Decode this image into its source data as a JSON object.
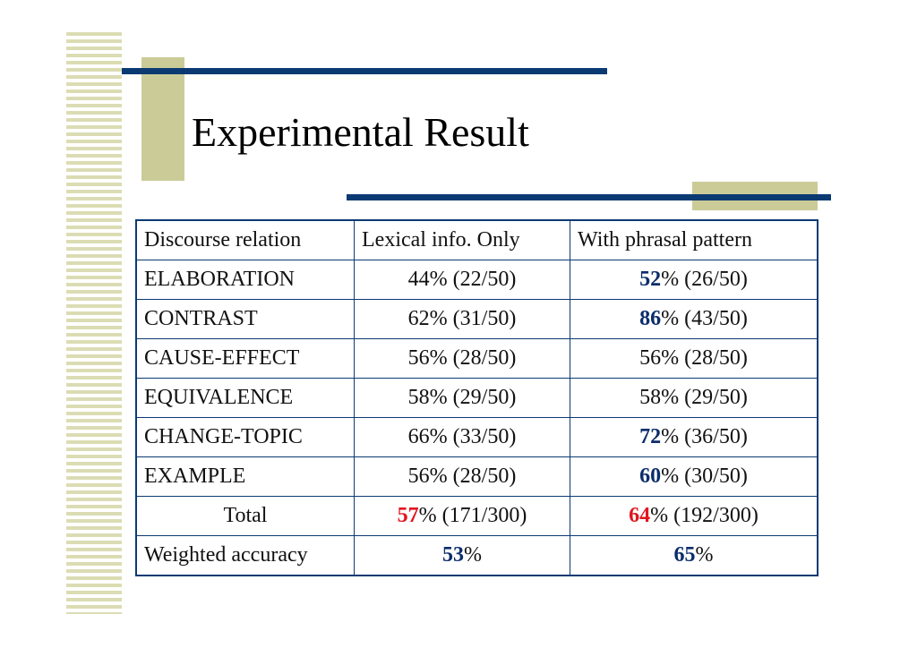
{
  "slide": {
    "title": "Experimental Result"
  },
  "table": {
    "headers": [
      "Discourse relation",
      "Lexical info. Only",
      "With phrasal pattern"
    ],
    "rows": [
      {
        "label": "ELABORATION",
        "lexical": {
          "bold": "",
          "rest": "44% (22/50)"
        },
        "phrasal": {
          "bold": "52",
          "rest": "% (26/50)"
        }
      },
      {
        "label": "CONTRAST",
        "lexical": {
          "bold": "",
          "rest": "62% (31/50)"
        },
        "phrasal": {
          "bold": "86",
          "rest": "% (43/50)"
        }
      },
      {
        "label": "CAUSE-EFFECT",
        "lexical": {
          "bold": "",
          "rest": "56% (28/50)"
        },
        "phrasal": {
          "bold": "",
          "rest": "56% (28/50)"
        }
      },
      {
        "label": "EQUIVALENCE",
        "lexical": {
          "bold": "",
          "rest": "58% (29/50)"
        },
        "phrasal": {
          "bold": "",
          "rest": "58% (29/50)"
        }
      },
      {
        "label": "CHANGE-TOPIC",
        "lexical": {
          "bold": "",
          "rest": "66% (33/50)"
        },
        "phrasal": {
          "bold": "72",
          "rest": "% (36/50)"
        }
      },
      {
        "label": "EXAMPLE",
        "lexical": {
          "bold": "",
          "rest": "56% (28/50)"
        },
        "phrasal": {
          "bold": "60",
          "rest": "% (30/50)"
        }
      }
    ],
    "total": {
      "label": "Total",
      "lexical": {
        "bold": "57",
        "rest": "% (171/300)"
      },
      "phrasal": {
        "bold": "64",
        "rest": "% (192/300)"
      }
    },
    "weighted": {
      "label": "Weighted accuracy",
      "lexical": {
        "bold": "53",
        "rest": "%"
      },
      "phrasal": {
        "bold": "65",
        "rest": "%"
      }
    }
  },
  "colors": {
    "accent_navy": "#0b3a73",
    "accent_olive": "#cbcb98",
    "highlight_blue": "#0b2d6b",
    "highlight_red": "#e0161e"
  }
}
